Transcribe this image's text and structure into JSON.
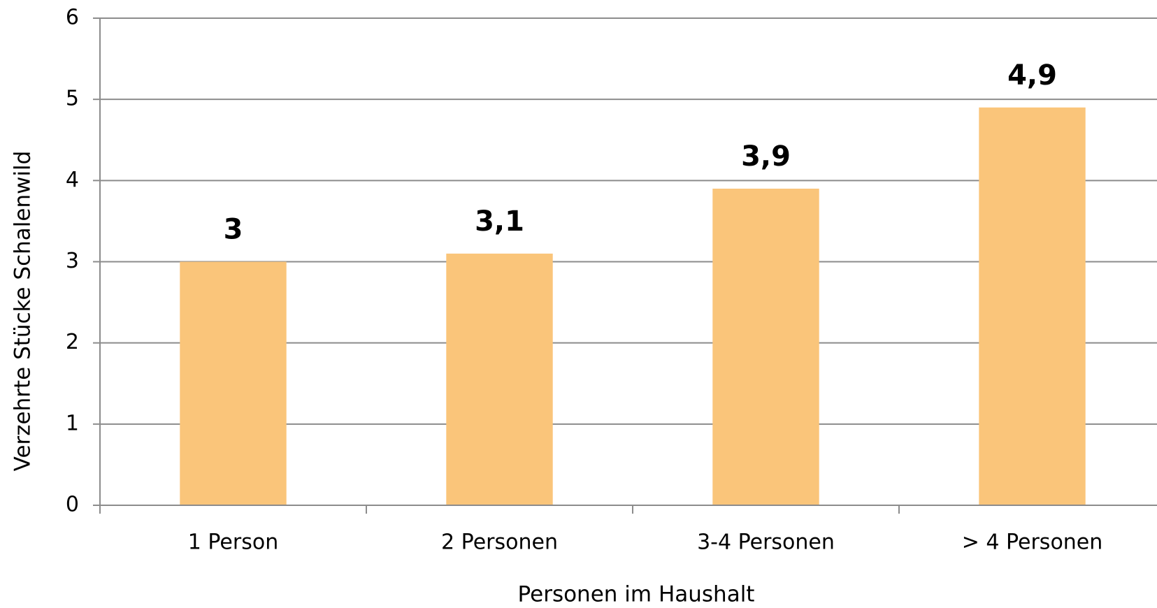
{
  "chart_data": {
    "type": "bar",
    "x_label": "Personen im Haushalt",
    "y_label": "Verzehrte Stücke  Schalenwild",
    "categories": [
      "1 Person",
      "2 Personen",
      "3-4 Personen",
      "> 4 Personen"
    ],
    "values": [
      3,
      3.1,
      3.9,
      4.9
    ],
    "value_labels": [
      "3",
      "3,1",
      "3,9",
      "4,9"
    ],
    "color": "#fac57a",
    "ylim": [
      0,
      6
    ],
    "yticks": [
      0,
      1,
      2,
      3,
      4,
      5,
      6
    ],
    "grid": true
  }
}
